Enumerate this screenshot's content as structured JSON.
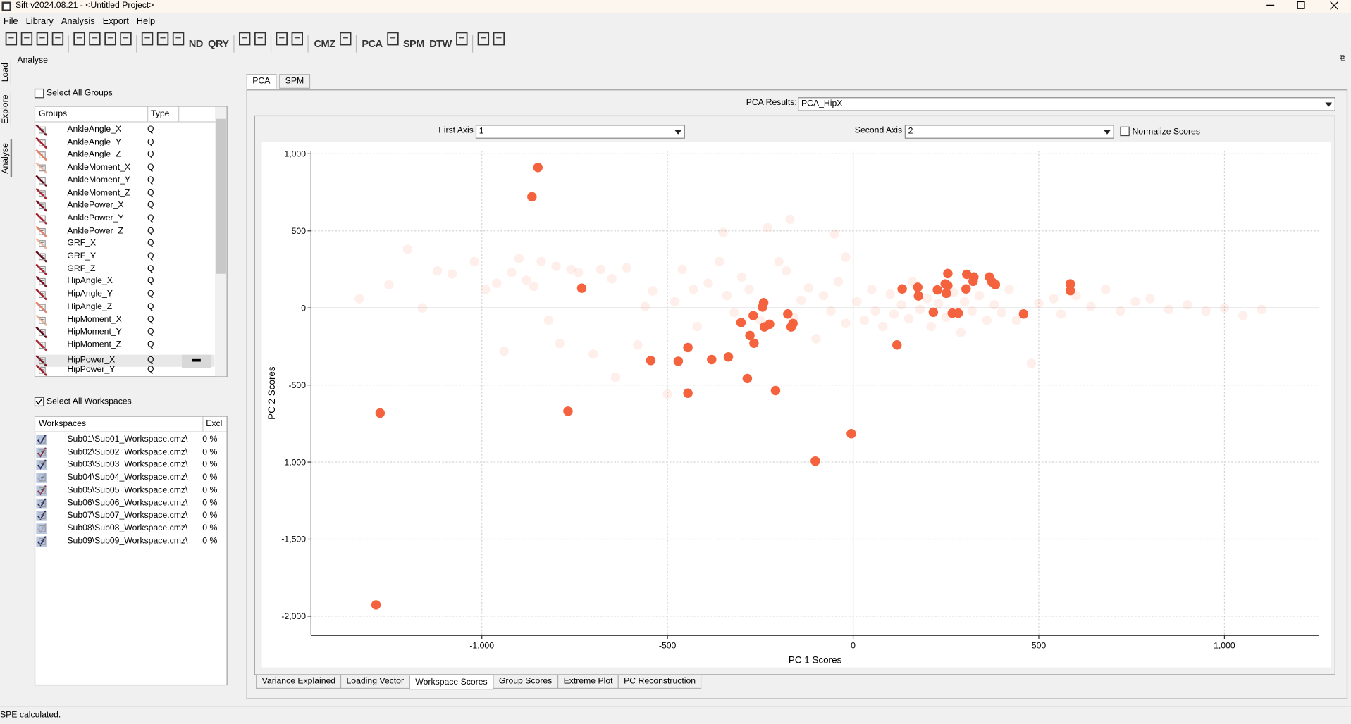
{
  "window": {
    "title": "Sift v2024.08.21 - <Untitled Project>"
  },
  "menu": [
    "File",
    "Library",
    "Analysis",
    "Export",
    "Help"
  ],
  "toolbar": [
    "ND",
    "QRY",
    "CMZ",
    "PCA",
    "SPM",
    "DTW"
  ],
  "side_tabs": [
    "Load",
    "Explore",
    "Analyse"
  ],
  "panel_title": "Analyse",
  "groups": {
    "select_all": "Select All Groups",
    "columns": [
      "Groups",
      "Type"
    ],
    "rows": [
      [
        "AnkleAngle_X",
        "Q"
      ],
      [
        "AnkleAngle_Y",
        "Q"
      ],
      [
        "AnkleAngle_Z",
        "Q"
      ],
      [
        "AnkleMoment_X",
        "Q"
      ],
      [
        "AnkleMoment_Y",
        "Q"
      ],
      [
        "AnkleMoment_Z",
        "Q"
      ],
      [
        "AnklePower_X",
        "Q"
      ],
      [
        "AnklePower_Y",
        "Q"
      ],
      [
        "AnklePower_Z",
        "Q"
      ],
      [
        "GRF_X",
        "Q"
      ],
      [
        "GRF_Y",
        "Q"
      ],
      [
        "GRF_Z",
        "Q"
      ],
      [
        "HipAngle_X",
        "Q"
      ],
      [
        "HipAngle_Y",
        "Q"
      ],
      [
        "HipAngle_Z",
        "Q"
      ],
      [
        "HipMoment_X",
        "Q"
      ],
      [
        "HipMoment_Y",
        "Q"
      ],
      [
        "HipMoment_Z",
        "Q"
      ],
      [
        "HipPower_X",
        "Q"
      ],
      [
        "HipPower_Y",
        "Q"
      ]
    ]
  },
  "workspaces": {
    "select_all": "Select All Workspaces",
    "columns": [
      "Workspaces",
      "Excl"
    ],
    "rows": [
      [
        "Sub01\\Sub01_Workspace.cmz\\",
        "0 %"
      ],
      [
        "Sub02\\Sub02_Workspace.cmz\\",
        "0 %"
      ],
      [
        "Sub03\\Sub03_Workspace.cmz\\",
        "0 %"
      ],
      [
        "Sub04\\Sub04_Workspace.cmz\\",
        "0 %"
      ],
      [
        "Sub05\\Sub05_Workspace.cmz\\",
        "0 %"
      ],
      [
        "Sub06\\Sub06_Workspace.cmz\\",
        "0 %"
      ],
      [
        "Sub07\\Sub07_Workspace.cmz\\",
        "0 %"
      ],
      [
        "Sub08\\Sub08_Workspace.cmz\\",
        "0 %"
      ],
      [
        "Sub09\\Sub09_Workspace.cmz\\",
        "0 %"
      ]
    ]
  },
  "analysis_tabs": [
    "PCA",
    "SPM"
  ],
  "pca_results": {
    "label": "PCA Results:",
    "value": "PCA_HipX"
  },
  "first_axis": {
    "label": "First Axis",
    "value": "1"
  },
  "second_axis": {
    "label": "Second Axis",
    "value": "2"
  },
  "normalize": "Normalize Scores",
  "chart_data": {
    "type": "scatter",
    "x_label": "PC 1 Scores",
    "y_label": "PC 2 Scores",
    "xlim": [
      -1460,
      1255
    ],
    "ylim": [
      -2125,
      1020
    ],
    "grid": true,
    "xticks": [
      {
        "value": -1000,
        "label": "-1,000"
      },
      -500,
      0,
      500,
      {
        "value": 1000,
        "label": "1,000"
      }
    ],
    "yticks": [
      {
        "value": 1000,
        "label": "1,000"
      },
      500,
      0,
      -500,
      {
        "value": -1000,
        "label": "-1,000"
      },
      {
        "value": -1500,
        "label": "-1,500"
      },
      {
        "value": -2000,
        "label": "-2,000"
      }
    ],
    "series": [
      {
        "color": "#f4623e",
        "opacity": 0.1,
        "x": [
          -1330,
          -1250,
          -1200,
          -1160,
          -1120,
          -1080,
          -1020,
          -990,
          -960,
          -940,
          -920,
          -900,
          -880,
          -860,
          -840,
          -820,
          -800,
          -790,
          -760,
          -740,
          -700,
          -680,
          -650,
          -640,
          -610,
          -580,
          -560,
          -540,
          -500,
          -480,
          -460,
          -430,
          -420,
          -390,
          -360,
          -340,
          -320,
          -300,
          -280,
          -250,
          -230,
          -200,
          -180,
          -160,
          -140,
          -120,
          -100,
          -80,
          -60,
          -40,
          -20,
          10,
          30,
          50,
          60,
          80,
          100,
          110,
          130,
          150,
          160,
          180,
          200,
          210,
          230,
          250,
          270,
          290,
          300,
          320,
          340,
          360,
          380,
          400,
          420,
          440,
          480,
          500,
          540,
          560,
          600,
          640,
          680,
          720,
          760,
          800,
          850,
          900,
          950,
          1000,
          1050,
          1100,
          -170,
          -50,
          -350,
          -20
        ],
        "y": [
          60,
          150,
          380,
          0,
          240,
          220,
          300,
          120,
          160,
          -280,
          230,
          320,
          180,
          140,
          300,
          -80,
          270,
          -230,
          250,
          230,
          -300,
          250,
          190,
          -450,
          260,
          -240,
          10,
          110,
          -560,
          40,
          250,
          120,
          -120,
          160,
          300,
          80,
          -30,
          200,
          120,
          -80,
          520,
          300,
          240,
          -60,
          50,
          130,
          -200,
          80,
          -20,
          170,
          -100,
          40,
          -80,
          120,
          -20,
          -120,
          90,
          -40,
          20,
          -70,
          170,
          -10,
          60,
          -120,
          30,
          -60,
          100,
          -160,
          40,
          -20,
          80,
          -80,
          20,
          -30,
          120,
          -80,
          -360,
          30,
          60,
          -40,
          80,
          10,
          120,
          -20,
          40,
          60,
          -10,
          20,
          -20,
          0,
          -50,
          -10,
          575,
          480,
          490,
          330
        ]
      },
      {
        "color": "#f4623e",
        "opacity": 1,
        "x": [
          -849,
          -865,
          -731,
          -1274,
          -1285,
          -768,
          -545,
          -471,
          -445,
          -445,
          -381,
          -336,
          -285,
          -302,
          -278,
          -269,
          -267,
          -241,
          -244,
          -239,
          -225,
          -209,
          -176,
          -167,
          -162,
          -102,
          -5,
          118,
          132,
          174,
          176,
          216,
          227,
          248,
          255,
          251,
          255,
          267,
          283,
          304,
          306,
          323,
          325,
          367,
          374,
          383,
          459,
          585,
          585
        ],
        "y": [
          911,
          721,
          128,
          -682,
          -1927,
          -670,
          -341,
          -346,
          -257,
          -553,
          -335,
          -318,
          -458,
          -95,
          -179,
          -50,
          -229,
          34,
          6,
          -123,
          -106,
          -536,
          -39,
          -123,
          -101,
          -994,
          -816,
          -240,
          123,
          134,
          78,
          -28,
          117,
          156,
          223,
          95,
          145,
          -34,
          -34,
          123,
          218,
          173,
          201,
          201,
          168,
          151,
          -39,
          156,
          112
        ]
      }
    ]
  },
  "result_tabs": [
    "Variance Explained",
    "Loading Vector",
    "Workspace Scores",
    "Group Scores",
    "Extreme Plot",
    "PC Reconstruction"
  ],
  "status": "SPE calculated."
}
